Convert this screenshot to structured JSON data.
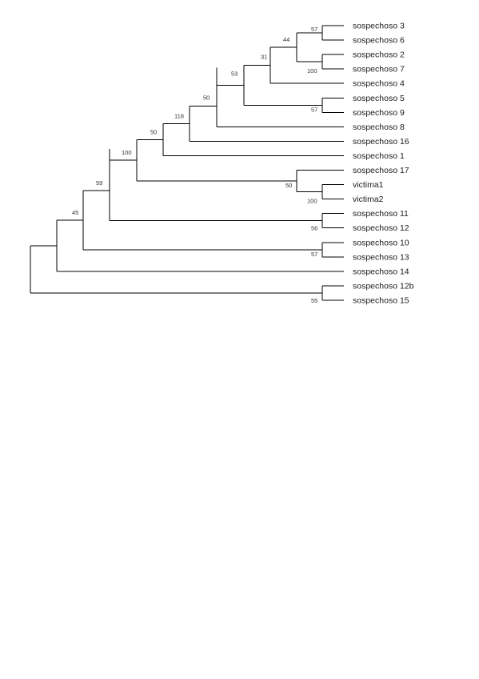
{
  "tree": {
    "leaves": [
      "sospechoso 3",
      "sospechoso 6",
      "sospechoso 2",
      "sospechoso 7",
      "sospechoso 4",
      "sospechoso 5",
      "sospechoso 9",
      "sospechoso 8",
      "sospechoso 16",
      "sospechoso 1",
      "sospechoso 17",
      "victima1",
      "victima2",
      "sospechoso 11",
      "sospechoso 12",
      "sospechoso 10",
      "sospechoso 13",
      "sospechoso 14",
      "sospechoso 12b",
      "sospechoso 15"
    ],
    "nodes": [
      {
        "id": "n36",
        "children": [
          "L0",
          "L1"
        ],
        "support": "57"
      },
      {
        "id": "n27",
        "children": [
          "L2",
          "L3"
        ],
        "support": "100"
      },
      {
        "id": "nA",
        "children": [
          "n36",
          "n27"
        ],
        "support": "44"
      },
      {
        "id": "nB",
        "children": [
          "nA",
          "L4"
        ],
        "support": "31"
      },
      {
        "id": "n59",
        "children": [
          "L5",
          "L6"
        ],
        "support": "57"
      },
      {
        "id": "nC",
        "children": [
          "nB",
          "n59"
        ],
        "support": "53"
      },
      {
        "id": "nD",
        "children": [
          "nC",
          "L7"
        ],
        "support": "50"
      },
      {
        "id": "nE",
        "children": [
          "nD",
          "L8"
        ],
        "support": "118"
      },
      {
        "id": "nF",
        "children": [
          "nE",
          "L9"
        ],
        "support": "50"
      },
      {
        "id": "nV",
        "children": [
          "L11",
          "L12"
        ],
        "support": "100"
      },
      {
        "id": "nG",
        "children": [
          "L10",
          "nV"
        ],
        "support": "50"
      },
      {
        "id": "nH",
        "children": [
          "nF",
          "nG"
        ],
        "support": "100"
      },
      {
        "id": "n1112",
        "children": [
          "L13",
          "L14"
        ],
        "support": "56"
      },
      {
        "id": "nI",
        "children": [
          "nH",
          "n1112"
        ],
        "support": "59"
      },
      {
        "id": "n1013",
        "children": [
          "L15",
          "L16"
        ],
        "support": "57"
      },
      {
        "id": "nJ",
        "children": [
          "nI",
          "n1013"
        ],
        "support": "45"
      },
      {
        "id": "nK",
        "children": [
          "nJ",
          "L17"
        ],
        "support": ""
      },
      {
        "id": "n1215",
        "children": [
          "L18",
          "L19"
        ],
        "support": "55"
      },
      {
        "id": "root",
        "children": [
          "nK",
          "n1215"
        ],
        "support": ""
      }
    ]
  }
}
